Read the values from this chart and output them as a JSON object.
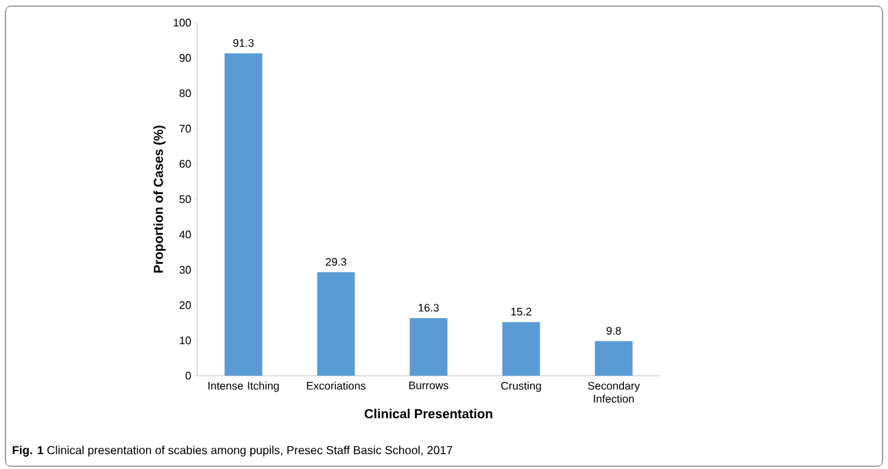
{
  "chart_data": {
    "type": "bar",
    "xlabel": "Clinical Presentation",
    "ylabel": "Proportion of Cases (%)",
    "categories": [
      "Intense Itching",
      "Excoriations",
      "Burrows",
      "Crusting",
      "Secondary Infection"
    ],
    "values": [
      91.3,
      29.3,
      16.3,
      15.2,
      9.8
    ],
    "color": "#5b9bd5",
    "ylim": [
      0,
      100
    ],
    "yticks": [
      0,
      10,
      20,
      30,
      40,
      50,
      60,
      70,
      80,
      90,
      100
    ],
    "data_labels": true,
    "grid": false,
    "annotations": [
      "**Fig. 1** Clinical presentation of scabies among pupils, Presec Staff Basic School, 2017"
    ]
  }
}
